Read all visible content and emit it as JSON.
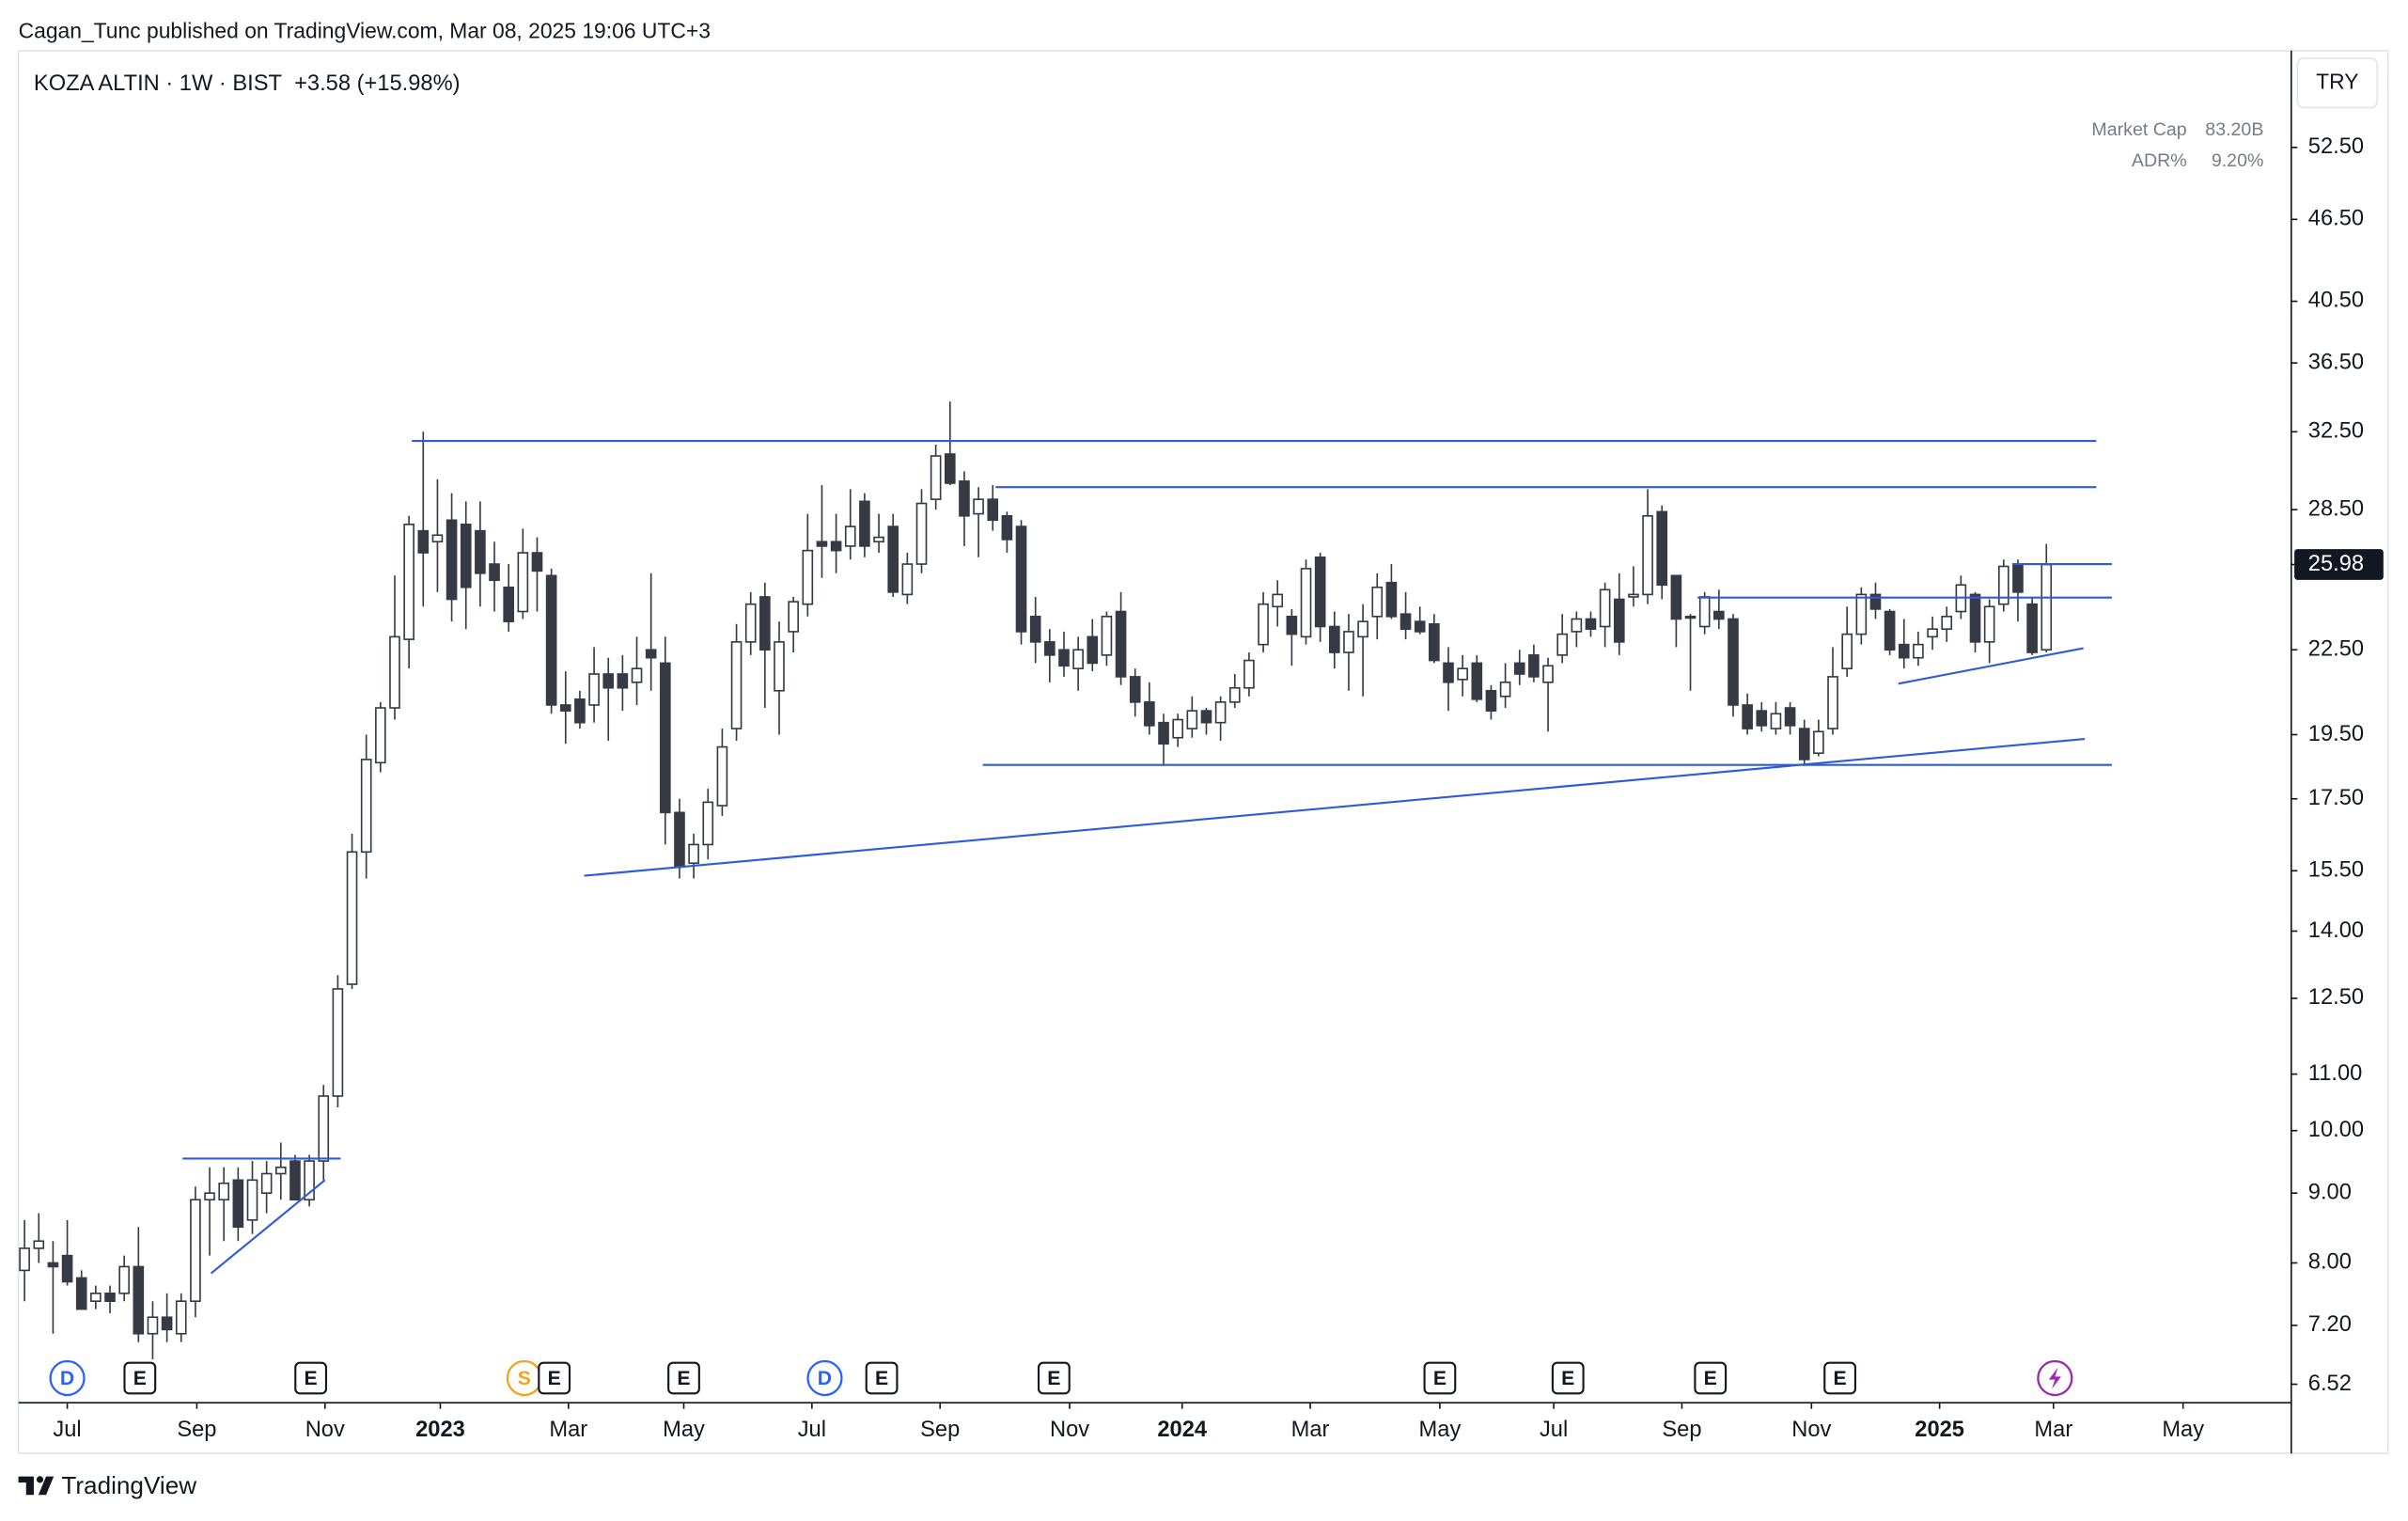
{
  "header": "Cagan_Tunc published on TradingView.com, Mar 08, 2025 19:06 UTC+3",
  "footer": "TradingView",
  "chart_data": {
    "type": "candlestick",
    "title": "KOZA ALTIN · 1W · BIST",
    "change_label": "+3.58 (+15.98%)",
    "currency": "TRY",
    "last_price": 25.98,
    "stats": [
      {
        "name": "Market Cap",
        "value_label": "83.20B"
      },
      {
        "name": "ADR%",
        "value_label": "9.20%"
      }
    ],
    "log_scale": true,
    "up_color": "#ffffff",
    "down_color": "#363a45",
    "wick_color": "#363a45",
    "line_color": "#2f5bd8",
    "xlim": [
      -0.43,
      159.2
    ],
    "ylim": [
      6.32,
      61.8
    ],
    "xticks": [
      {
        "value": 3.0,
        "label": "Jul"
      },
      {
        "value": 12.1,
        "label": "Sep"
      },
      {
        "value": 21.1,
        "label": "Nov"
      },
      {
        "value": 29.2,
        "label": "2023"
      },
      {
        "value": 38.2,
        "label": "Mar"
      },
      {
        "value": 46.3,
        "label": "May"
      },
      {
        "value": 55.3,
        "label": "Jul"
      },
      {
        "value": 64.3,
        "label": "Sep"
      },
      {
        "value": 73.4,
        "label": "Nov"
      },
      {
        "value": 81.3,
        "label": "2024"
      },
      {
        "value": 90.3,
        "label": "Mar"
      },
      {
        "value": 99.4,
        "label": "May"
      },
      {
        "value": 107.4,
        "label": "Jul"
      },
      {
        "value": 116.4,
        "label": "Sep"
      },
      {
        "value": 125.5,
        "label": "Nov"
      },
      {
        "value": 134.5,
        "label": "2025"
      },
      {
        "value": 142.5,
        "label": "Mar"
      },
      {
        "value": 151.6,
        "label": "May"
      }
    ],
    "yticks": [
      {
        "value": 52.5,
        "label": "52.50"
      },
      {
        "value": 46.5,
        "label": "46.50"
      },
      {
        "value": 40.5,
        "label": "40.50"
      },
      {
        "value": 36.5,
        "label": "36.50"
      },
      {
        "value": 32.5,
        "label": "32.50"
      },
      {
        "value": 28.5,
        "label": "28.50"
      },
      {
        "value": 22.5,
        "label": "22.50"
      },
      {
        "value": 19.5,
        "label": "19.50"
      },
      {
        "value": 17.5,
        "label": "17.50"
      },
      {
        "value": 15.5,
        "label": "15.50"
      },
      {
        "value": 14,
        "label": "14.00"
      },
      {
        "value": 12.5,
        "label": "12.50"
      },
      {
        "value": 11,
        "label": "11.00"
      },
      {
        "value": 10,
        "label": "10.00"
      },
      {
        "value": 9,
        "label": "9.00"
      },
      {
        "value": 8,
        "label": "8.00"
      },
      {
        "value": 7.2,
        "label": "7.20"
      },
      {
        "value": 6.52,
        "label": "6.52"
      }
    ],
    "open": [
      7.9,
      8.2,
      8.0,
      8.1,
      7.8,
      7.5,
      7.6,
      7.6,
      7.95,
      7.1,
      7.3,
      7.1,
      7.5,
      8.9,
      8.9,
      9.2,
      8.6,
      9.0,
      9.3,
      9.5,
      8.9,
      9.5,
      10.6,
      12.8,
      16.0,
      18.6,
      20.4,
      22.9,
      27.5,
      27.0,
      28.0,
      27.8,
      27.5,
      26,
      25.0,
      24.0,
      26.5,
      25.5,
      20.5,
      20.7,
      20.5,
      21.6,
      21.6,
      21.3,
      22.5,
      22.0,
      17.1,
      15.7,
      16.2,
      17.3,
      19.7,
      22.8,
      24.6,
      21.0,
      23.2,
      24.3,
      27,
      27,
      26.8,
      28.9,
      27,
      27.7,
      24.7,
      26.0,
      29,
      31.3,
      29.9,
      28.3,
      29.0,
      28.2,
      27.7,
      23.8,
      22.8,
      22.5,
      21.8,
      23.0,
      22.3,
      24.0,
      21.5,
      20.6,
      19.9,
      19.4,
      19.7,
      20.3,
      19.9,
      20.6,
      21.1,
      22.7,
      24.2,
      23.8,
      23.0,
      26.3,
      23.4,
      22.4,
      23.0,
      23.8,
      25.2,
      23.9,
      23.6,
      23.5,
      22.0,
      21.4,
      22.0,
      21.0,
      20.8,
      22.0,
      22.3,
      21.3,
      22.3,
      23.2,
      23.7,
      23.4,
      24.5,
      24.6,
      24.7,
      28.4,
      25.5,
      23.8,
      23.4,
      24.0,
      23.7,
      20.5,
      20.3,
      19.7,
      20.4,
      19.7,
      18.9,
      19.7,
      21.8,
      23.1,
      24.7,
      24.0,
      22.7,
      22.2,
      23.0,
      23.3,
      24.0,
      24.7,
      22.8,
      24.3,
      26.0,
      24.3,
      22.5
    ],
    "high": [
      8.6,
      8.7,
      8.3,
      8.6,
      7.9,
      7.7,
      7.7,
      8.1,
      8.5,
      7.5,
      7.6,
      7.6,
      9.1,
      9.4,
      9.4,
      9.4,
      9.5,
      9.5,
      9.8,
      9.6,
      9.6,
      10.8,
      13.0,
      16.5,
      19.5,
      20.6,
      25.5,
      28.2,
      32.5,
      30.0,
      29.3,
      28.9,
      28.9,
      27,
      26,
      27.6,
      27.2,
      25.8,
      21.7,
      21.0,
      22.6,
      22.2,
      22.3,
      23,
      25.6,
      23.0,
      17.5,
      16.5,
      17.8,
      19.7,
      23.5,
      24.8,
      25.2,
      23.6,
      24.6,
      28.3,
      29.7,
      28.3,
      29.5,
      29.3,
      28.3,
      28.3,
      26.5,
      29.5,
      31.8,
      34.2,
      30.4,
      29.6,
      29.7,
      28.4,
      28.0,
      24.6,
      23.3,
      23.2,
      23.0,
      23.7,
      24.0,
      24.8,
      21.8,
      21.3,
      20.2,
      20.2,
      20.8,
      20.4,
      20.8,
      21.6,
      22.4,
      24.8,
      25.3,
      24.1,
      26.2,
      26.5,
      24.0,
      23.9,
      24.3,
      25.6,
      26.0,
      24.8,
      24.2,
      23.9,
      22.6,
      22.3,
      22.3,
      21.2,
      22.0,
      22.5,
      22.7,
      22.2,
      23.9,
      24.0,
      24.0,
      25.2,
      25.6,
      25.9,
      29.5,
      28.7,
      25.5,
      23.9,
      24.8,
      24.9,
      23.9,
      20.9,
      20.6,
      20.6,
      20.6,
      20.0,
      20.0,
      22.6,
      24.2,
      25.0,
      25.2,
      24.1,
      23.7,
      23.2,
      23.8,
      24.2,
      25.5,
      24.8,
      24.5,
      26.2,
      26.2,
      24.6,
      26.9
    ],
    "low": [
      7.5,
      8.0,
      7.1,
      7.7,
      7.4,
      7.4,
      7.35,
      7.5,
      7.0,
      6.8,
      7.0,
      7.0,
      7.3,
      8.1,
      8.3,
      8.3,
      8.4,
      8.7,
      8.9,
      8.9,
      8.8,
      9.2,
      10.4,
      12.7,
      15.3,
      18.3,
      20.0,
      21.8,
      24.2,
      24.8,
      23.6,
      23.3,
      24.2,
      24,
      23.2,
      23.7,
      24,
      20.2,
      19.2,
      19.7,
      19.9,
      19.3,
      20.3,
      20.5,
      21.0,
      16.2,
      15.3,
      15.3,
      15.8,
      17.0,
      19.3,
      22.3,
      20.4,
      19.5,
      22.4,
      23.8,
      25.4,
      25.6,
      26.2,
      26.3,
      26.5,
      24.6,
      24.3,
      25.6,
      28.5,
      29.7,
      26.8,
      26.3,
      27.5,
      26.5,
      22.7,
      22.0,
      21.3,
      21.5,
      21.0,
      21.7,
      21.9,
      21.2,
      20.1,
      19.5,
      18.5,
      19.1,
      19.4,
      19.5,
      19.3,
      20.4,
      20.8,
      22.4,
      23.4,
      21.9,
      22.7,
      22.8,
      21.8,
      21.0,
      20.8,
      22.9,
      23.7,
      22.9,
      23.1,
      22.0,
      20.3,
      20.8,
      20.6,
      20.0,
      20.4,
      21.2,
      21.3,
      19.6,
      22.0,
      22.6,
      23.0,
      22.6,
      22.3,
      24.2,
      24.3,
      24.5,
      22.6,
      21.0,
      23.1,
      23.3,
      20.1,
      19.5,
      19.6,
      19.5,
      19.5,
      18.5,
      18.8,
      19.5,
      21.5,
      22.7,
      23.7,
      22.3,
      21.8,
      21.9,
      22.5,
      22.8,
      23.7,
      22.4,
      22.0,
      24.0,
      23.6,
      22.3,
      22.4
    ],
    "close": [
      8.2,
      8.3,
      7.95,
      7.75,
      7.4,
      7.6,
      7.5,
      7.95,
      7.1,
      7.3,
      7.15,
      7.5,
      8.9,
      9.0,
      9.15,
      8.5,
      9.2,
      9.3,
      9.4,
      8.9,
      9.5,
      10.6,
      12.7,
      16.0,
      18.7,
      20.4,
      23.0,
      27.8,
      26.5,
      27.3,
      24.5,
      25.0,
      25.6,
      25.3,
      23.6,
      26.5,
      25.7,
      20.5,
      20.3,
      19.9,
      21.6,
      21.1,
      21.1,
      21.8,
      22.2,
      17.1,
      15.6,
      16.2,
      17.4,
      19.1,
      22.8,
      24.3,
      22.5,
      22.8,
      24.4,
      26.6,
      26.8,
      26.6,
      27.7,
      26.8,
      27.2,
      24.8,
      26.0,
      28.8,
      31.2,
      29.8,
      28.2,
      29.0,
      28.0,
      27.1,
      23.2,
      22.8,
      22.3,
      21.9,
      22.5,
      22.0,
      23.8,
      21.5,
      20.6,
      19.8,
      19.2,
      20.0,
      20.3,
      19.9,
      20.6,
      21.1,
      22.1,
      24.3,
      24.7,
      23.1,
      25.8,
      23.4,
      22.4,
      23.2,
      23.6,
      25.0,
      23.8,
      23.3,
      23.2,
      22.1,
      21.3,
      21.8,
      20.7,
      20.3,
      21.3,
      21.6,
      21.5,
      21.9,
      23.1,
      23.7,
      23.3,
      24.9,
      22.8,
      24.7,
      28.2,
      25.1,
      23.7,
      23.8,
      24.6,
      23.7,
      20.5,
      19.7,
      19.8,
      20.2,
      19.8,
      18.7,
      19.6,
      21.5,
      23.1,
      24.7,
      24.1,
      22.5,
      22.2,
      22.7,
      23.3,
      23.8,
      25.1,
      22.8,
      24.2,
      25.9,
      24.8,
      22.4,
      25.98
    ],
    "trendlines": [
      {
        "x": [
          27.2,
          145.5
        ],
        "y": [
          32.0,
          32.0
        ]
      },
      {
        "x": [
          68.2,
          145.5
        ],
        "y": [
          29.6,
          29.6
        ]
      },
      {
        "x": [
          117.5,
          146.6
        ],
        "y": [
          24.57,
          24.57
        ]
      },
      {
        "x": [
          139.6,
          146.6
        ],
        "y": [
          26.0,
          26.0
        ]
      },
      {
        "x": [
          67.3,
          146.6
        ],
        "y": [
          18.53,
          18.53
        ]
      },
      {
        "x": [
          39.3,
          144.7
        ],
        "y": [
          15.37,
          19.36
        ]
      },
      {
        "x": [
          131.6,
          144.6
        ],
        "y": [
          21.25,
          22.56
        ]
      },
      {
        "x": [
          11.1,
          22.2
        ],
        "y": [
          9.54,
          9.54
        ]
      },
      {
        "x": [
          13.1,
          21.1
        ],
        "y": [
          7.86,
          9.2
        ]
      }
    ],
    "events": [
      {
        "x": 3.0,
        "label": "D",
        "color": "#2962ff"
      },
      {
        "x": 8.1,
        "label": "E",
        "color": "#131722"
      },
      {
        "x": 20.1,
        "label": "E",
        "color": "#131722"
      },
      {
        "x": 35.1,
        "label": "S",
        "color": "#f7a21b"
      },
      {
        "x": 37.2,
        "label": "E",
        "color": "#131722"
      },
      {
        "x": 46.3,
        "label": "E",
        "color": "#131722"
      },
      {
        "x": 56.2,
        "label": "D",
        "color": "#2962ff"
      },
      {
        "x": 60.2,
        "label": "E",
        "color": "#131722"
      },
      {
        "x": 72.3,
        "label": "E",
        "color": "#131722"
      },
      {
        "x": 99.4,
        "label": "E",
        "color": "#131722"
      },
      {
        "x": 108.4,
        "label": "E",
        "color": "#131722"
      },
      {
        "x": 118.4,
        "label": "E",
        "color": "#131722"
      },
      {
        "x": 127.5,
        "label": "E",
        "color": "#131722"
      },
      {
        "x": 142.6,
        "icon": "flash",
        "color": "#9c27b0"
      }
    ]
  }
}
